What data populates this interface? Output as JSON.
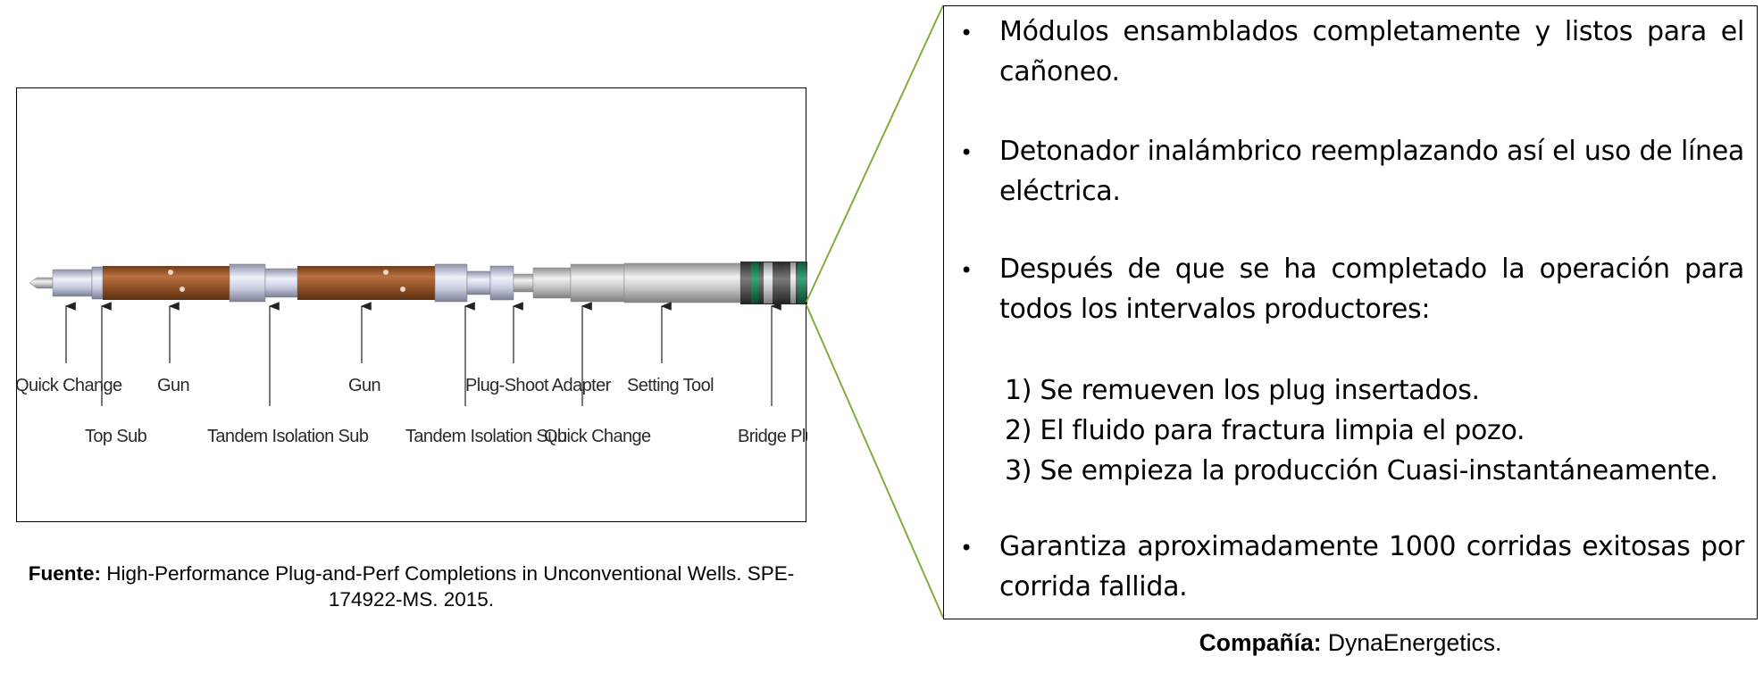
{
  "figure": {
    "labels_upper": [
      "Quick Change",
      "Gun",
      "Gun",
      "Plug-Shoot Adapter",
      "Setting Tool"
    ],
    "labels_lower": [
      "Top Sub",
      "Tandem Isolation Sub",
      "Tandem Isolation Sub",
      "Quick Change",
      "Bridge Plug"
    ],
    "colors": {
      "gun": "#9c5a2c",
      "sub": "#c9cde0",
      "tool": "#bfc1c4",
      "plug_band": "#1f8a5c",
      "connector": "#7fae3a"
    }
  },
  "caption": {
    "bold": "Fuente:",
    "text": " High-Performance Plug-and-Perf Completions in Unconventional Wells. SPE-174922-MS. 2015."
  },
  "bullets": [
    "Módulos ensamblados completamente y listos para el cañoneo.",
    "Detonador inalámbrico reemplazando así el uso de línea eléctrica.",
    "Después de que se ha completado la operación para todos los intervalos productores:",
    "Garantiza aproximadamente 1000 corridas exitosas por corrida fallida."
  ],
  "bullet_marker": "•",
  "steps": [
    "1) Se remueven los plug insertados.",
    "2) El fluido para fractura limpia el pozo.",
    "3) Se empieza la producción Cuasi-instantáneamente."
  ],
  "company": {
    "bold": "Compañía:",
    "text": " DynaEnergetics."
  }
}
